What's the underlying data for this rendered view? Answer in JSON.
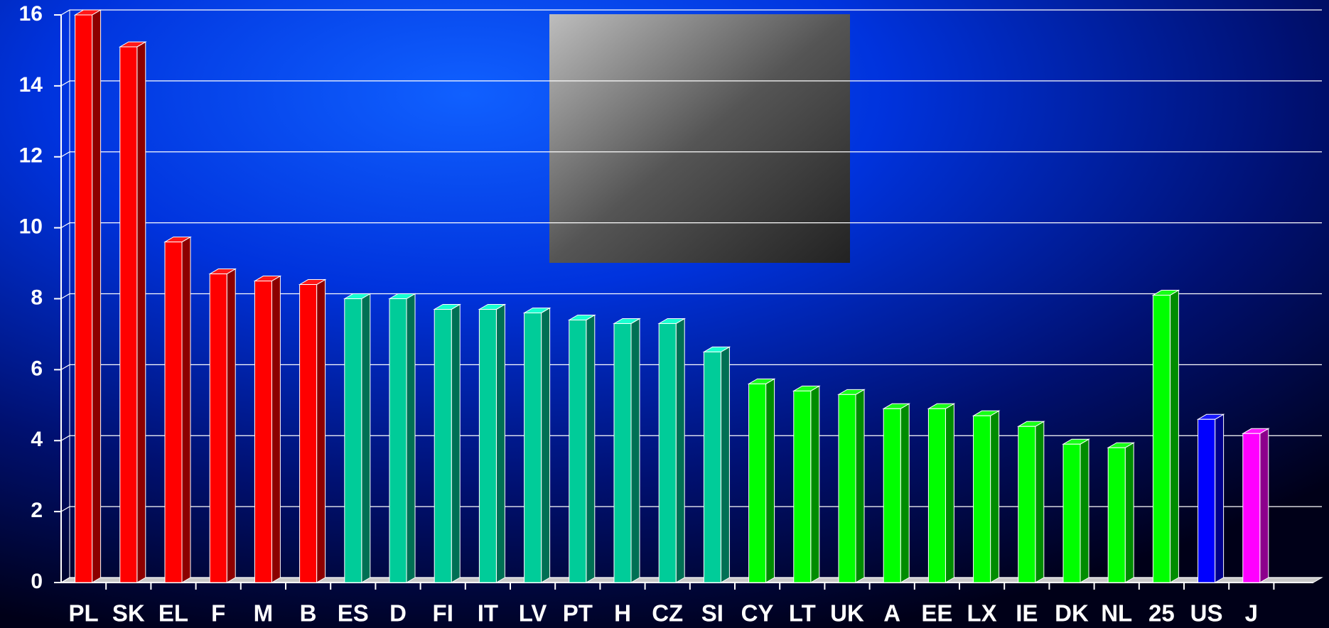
{
  "chart_data": {
    "type": "bar",
    "categories": [
      "PL",
      "SK",
      "EL",
      "F",
      "M",
      "B",
      "ES",
      "D",
      "FI",
      "IT",
      "LV",
      "PT",
      "H",
      "CZ",
      "SI",
      "CY",
      "LT",
      "UK",
      "A",
      "EE",
      "LX",
      "IE",
      "DK",
      "NL",
      "25",
      "US",
      "J"
    ],
    "values": [
      16,
      15.1,
      9.6,
      8.7,
      8.5,
      8.4,
      8.0,
      8.0,
      7.7,
      7.7,
      7.6,
      7.4,
      7.3,
      7.3,
      6.5,
      5.6,
      5.4,
      5.3,
      4.9,
      4.9,
      4.7,
      4.4,
      3.9,
      3.8,
      8.1,
      4.6,
      4.2
    ],
    "colors": [
      "#ff0000",
      "#ff0000",
      "#ff0000",
      "#ff0000",
      "#ff0000",
      "#ff0000",
      "#00cc99",
      "#00cc99",
      "#00cc99",
      "#00cc99",
      "#00cc99",
      "#00cc99",
      "#00cc99",
      "#00cc99",
      "#00cc99",
      "#00ff00",
      "#00ff00",
      "#00ff00",
      "#00ff00",
      "#00ff00",
      "#00ff00",
      "#00ff00",
      "#00ff00",
      "#00ff00",
      "#00ff00",
      "#0000ff",
      "#ff00ff"
    ],
    "ylim": [
      0,
      16
    ],
    "yticks": [
      0,
      2,
      4,
      6,
      8,
      10,
      12,
      14,
      16
    ],
    "grid": true
  }
}
